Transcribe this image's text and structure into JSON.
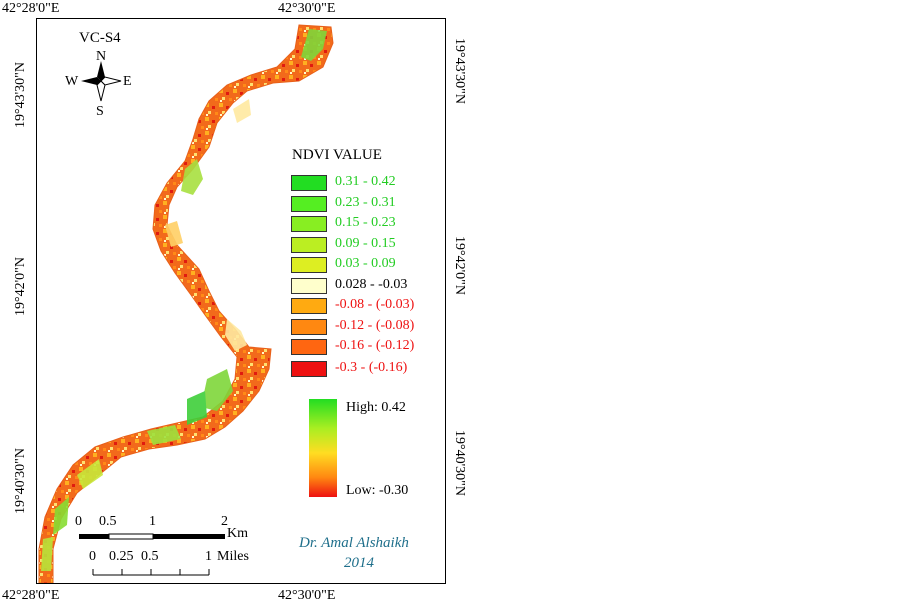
{
  "map": {
    "title": "VC-S4",
    "north_arrow": {
      "n": "N",
      "s": "S",
      "e": "E",
      "w": "W"
    },
    "coords": {
      "top": [
        "42°28'0\"E",
        "42°30'0\"E"
      ],
      "bottom": [
        "42°28'0\"E",
        "42°30'0\"E"
      ],
      "left": [
        "19°43'30\"N",
        "19°42'0\"N",
        "19°40'30\"N"
      ],
      "right": [
        "19°43'30\"N",
        "19°42'0\"N",
        "19°40'30\"N"
      ]
    },
    "legend": {
      "title": "NDVI VALUE",
      "items": [
        {
          "label": "0.31 - 0.42",
          "swatch": "#22dd22",
          "text_color": "#22cc22"
        },
        {
          "label": "0.23 - 0.31",
          "swatch": "#55ee22",
          "text_color": "#22cc22"
        },
        {
          "label": "0.15 - 0.23",
          "swatch": "#88ee22",
          "text_color": "#22cc22"
        },
        {
          "label": "0.09 - 0.15",
          "swatch": "#bbee22",
          "text_color": "#22cc22"
        },
        {
          "label": "0.03 - 0.09",
          "swatch": "#ddee22",
          "text_color": "#22cc22"
        },
        {
          "label": "0.028 - -0.03",
          "swatch": "#ffffcc",
          "text_color": "#000000"
        },
        {
          "label": "-0.08 - (-0.03)",
          "swatch": "#ffaa11",
          "text_color": "#ee1111"
        },
        {
          "label": "-0.12 - (-0.08)",
          "swatch": "#ff8811",
          "text_color": "#ee1111"
        },
        {
          "label": "-0.16 - (-0.12)",
          "swatch": "#ff6611",
          "text_color": "#ee1111"
        },
        {
          "label": "-0.3 - (-0.16)",
          "swatch": "#ee1111",
          "text_color": "#ee1111"
        }
      ]
    },
    "ramp": {
      "high": "High: 0.42",
      "low": "Low: -0.30"
    },
    "scale_km": {
      "ticks": [
        "0",
        "0.5",
        "1",
        "2"
      ],
      "unit": "Km"
    },
    "scale_miles": {
      "ticks": [
        "0",
        "0.25",
        "0.5",
        "1"
      ],
      "unit": "Miles"
    },
    "credit": {
      "name": "Dr. Amal Alshaikh",
      "year": "2014"
    }
  }
}
